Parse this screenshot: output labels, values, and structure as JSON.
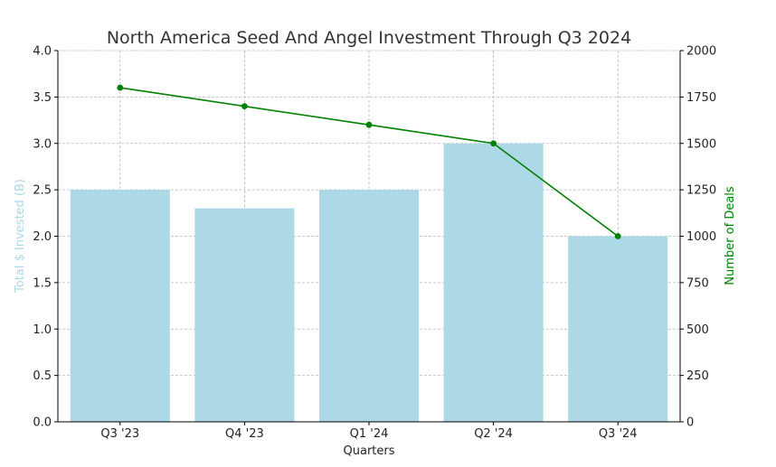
{
  "chart_data": {
    "type": "bar",
    "title": "North America Seed And Angel Investment Through Q3 2024",
    "xlabel": "Quarters",
    "ylabel": "Total $ Invested (B)",
    "y2label": "Number of Deals",
    "categories": [
      "Q3 '23",
      "Q4 '23",
      "Q1 '24",
      "Q2 '24",
      "Q3 '24"
    ],
    "ylim": [
      0,
      4
    ],
    "y2lim": [
      0,
      2000
    ],
    "yticks": [
      "0.0",
      "0.5",
      "1.0",
      "1.5",
      "2.0",
      "2.5",
      "3.0",
      "3.5",
      "4.0"
    ],
    "y2ticks": [
      "0",
      "250",
      "500",
      "750",
      "1000",
      "1250",
      "1500",
      "1750",
      "2000"
    ],
    "grid": true,
    "series": [
      {
        "type": "bar",
        "axis": "left",
        "color": "#add8e6",
        "values": [
          2.5,
          2.3,
          2.5,
          3.0,
          2.0
        ]
      },
      {
        "type": "line",
        "axis": "right",
        "color": "#008000",
        "marker": "circle",
        "values": [
          1800,
          1700,
          1600,
          1500,
          1000
        ]
      }
    ],
    "colors": {
      "left_axis_label": "#add8e6",
      "right_axis_label": "#008000"
    }
  }
}
